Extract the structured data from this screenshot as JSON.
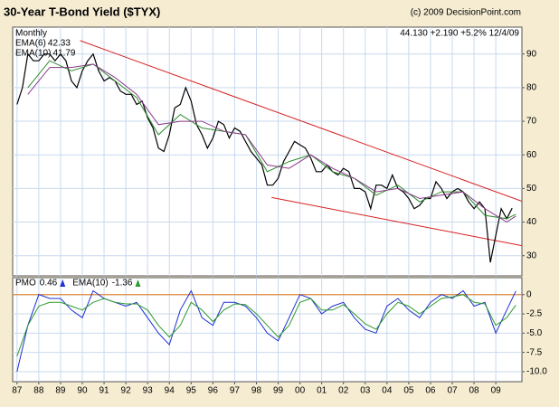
{
  "chart_data": [
    {
      "type": "line",
      "title": "30-Year T-Bond Yield ($TYX)",
      "source": "(c) 2009 DecisionPoint.com",
      "period": "Monthly",
      "quote": "44.130 +2.190 +5.2% 12/4/09",
      "xlim": [
        1986.8,
        2010.2
      ],
      "ylim": [
        24,
        98
      ],
      "yticks": [
        30,
        40,
        50,
        60,
        70,
        80,
        90
      ],
      "grid": true,
      "series": [
        {
          "color": "#000000",
          "x": [
            1987,
            1987.25,
            1987.5,
            1987.75,
            1988,
            1988.25,
            1988.5,
            1988.75,
            1989,
            1989.25,
            1989.5,
            1989.75,
            1990,
            1990.25,
            1990.5,
            1990.75,
            1991,
            1991.25,
            1991.5,
            1991.75,
            1992,
            1992.25,
            1992.5,
            1992.75,
            1993,
            1993.25,
            1993.5,
            1993.75,
            1994,
            1994.25,
            1994.5,
            1994.75,
            1995,
            1995.25,
            1995.5,
            1995.75,
            1996,
            1996.25,
            1996.5,
            1996.75,
            1997,
            1997.25,
            1997.5,
            1997.75,
            1998,
            1998.25,
            1998.5,
            1998.75,
            1999,
            1999.25,
            1999.5,
            1999.75,
            2000,
            2000.25,
            2000.5,
            2000.75,
            2001,
            2001.25,
            2001.5,
            2001.75,
            2002,
            2002.25,
            2002.5,
            2002.75,
            2003,
            2003.25,
            2003.5,
            2003.75,
            2004,
            2004.25,
            2004.5,
            2004.75,
            2005,
            2005.25,
            2005.5,
            2005.75,
            2006,
            2006.25,
            2006.5,
            2006.75,
            2007,
            2007.25,
            2007.5,
            2007.75,
            2008,
            2008.25,
            2008.5,
            2008.75,
            2009,
            2009.25,
            2009.5,
            2009.75
          ],
          "values": [
            75,
            80,
            90,
            88,
            88,
            90,
            90,
            88,
            90,
            88,
            82,
            80,
            85,
            88,
            90,
            85,
            82,
            83,
            82,
            79,
            78,
            78,
            75,
            76,
            71,
            68,
            62,
            61,
            66,
            74,
            75,
            80,
            76,
            69,
            66,
            62,
            65,
            70,
            69,
            65,
            68,
            67,
            64,
            61,
            59,
            57,
            51,
            51,
            53,
            58,
            61,
            64,
            63,
            62,
            59,
            55,
            55,
            57,
            55,
            54,
            56,
            55,
            50,
            50,
            49,
            44,
            51,
            51,
            50,
            54,
            50,
            49,
            47,
            44,
            45,
            47,
            47,
            52,
            50,
            47,
            49,
            50,
            49,
            46,
            44,
            46,
            44,
            28,
            36,
            44,
            41,
            44.13
          ]
        },
        {
          "name": "EMA(6)",
          "legend_value": 42.33,
          "color": "#2e8b2e",
          "x": [
            1987.5,
            1988.5,
            1989.5,
            1990.5,
            1991.5,
            1992.5,
            1993.5,
            1994.5,
            1995.5,
            1996.5,
            1997.5,
            1998.5,
            1999.5,
            2000.5,
            2001.5,
            2002.5,
            2003.5,
            2004.5,
            2005.5,
            2006.5,
            2007.5,
            2008.5,
            2009.5,
            2009.92
          ],
          "values": [
            80,
            88,
            85,
            87,
            82,
            77,
            66,
            72,
            68,
            67,
            66,
            55,
            58,
            60,
            55,
            53,
            48,
            51,
            46,
            49,
            49,
            42,
            41,
            42.33
          ]
        },
        {
          "name": "EMA(10)",
          "legend_value": 41.79,
          "color": "#8b3a8b",
          "x": [
            1987.5,
            1988.5,
            1989.5,
            1990.5,
            1991.5,
            1992.5,
            1993.5,
            1994.5,
            1995.5,
            1996.5,
            1997.5,
            1998.5,
            1999.5,
            2000.5,
            2001.5,
            2002.5,
            2003.5,
            2004.5,
            2005.5,
            2006.5,
            2007.5,
            2008.5,
            2009.5,
            2009.92
          ],
          "values": [
            78,
            86,
            86,
            87,
            83,
            78,
            69,
            70,
            70,
            67,
            66,
            57,
            56,
            60,
            56,
            53,
            49,
            50,
            47,
            48,
            49,
            44,
            40,
            41.79
          ]
        }
      ],
      "trend_lines": [
        {
          "color": "#d82020",
          "x": [
            1989.9,
            2010.2
          ],
          "values": [
            94,
            46.2
          ]
        },
        {
          "color": "#d82020",
          "x": [
            1998.7,
            2010.2
          ],
          "values": [
            47.3,
            33
          ]
        }
      ]
    },
    {
      "type": "line",
      "xlim": [
        1986.8,
        2010.2
      ],
      "ylim": [
        -11.3,
        2.2
      ],
      "yticks": [
        0,
        -2.5,
        {
          "value": -5,
          "label": "-5.0"
        },
        {
          "value": -7.5,
          "label": "-7.5"
        },
        {
          "value": -10,
          "label": "-10.0"
        }
      ],
      "grid": true,
      "xticks": [
        {
          "value": 1987,
          "label": "87"
        },
        {
          "value": 1988,
          "label": "88"
        },
        {
          "value": 1989,
          "label": "89"
        },
        {
          "value": 1990,
          "label": "90"
        },
        {
          "value": 1991,
          "label": "91"
        },
        {
          "value": 1992,
          "label": "92"
        },
        {
          "value": 1993,
          "label": "93"
        },
        {
          "value": 1994,
          "label": "94"
        },
        {
          "value": 1995,
          "label": "95"
        },
        {
          "value": 1996,
          "label": "96"
        },
        {
          "value": 1997,
          "label": "97"
        },
        {
          "value": 1998,
          "label": "98"
        },
        {
          "value": 1999,
          "label": "99"
        },
        {
          "value": 2000,
          "label": "00"
        },
        {
          "value": 2001,
          "label": "01"
        },
        {
          "value": 2002,
          "label": "02"
        },
        {
          "value": 2003,
          "label": "03"
        },
        {
          "value": 2004,
          "label": "04"
        },
        {
          "value": 2005,
          "label": "05"
        },
        {
          "value": 2006,
          "label": "06"
        },
        {
          "value": 2007,
          "label": "07"
        },
        {
          "value": 2008,
          "label": "08"
        },
        {
          "value": 2009,
          "label": "09"
        }
      ],
      "hline": {
        "value": 0,
        "color": "#e08a3a"
      },
      "series": [
        {
          "name": "PMO",
          "legend_value": 0.46,
          "color": "#1c2fd0",
          "x": [
            1987,
            1987.5,
            1988,
            1988.5,
            1989,
            1989.5,
            1990,
            1990.5,
            1991,
            1991.5,
            1992,
            1992.5,
            1993,
            1993.5,
            1994,
            1994.5,
            1995,
            1995.5,
            1996,
            1996.5,
            1997,
            1997.5,
            1998,
            1998.5,
            1999,
            1999.5,
            2000,
            2000.5,
            2001,
            2001.5,
            2002,
            2002.5,
            2003,
            2003.5,
            2004,
            2004.5,
            2005,
            2005.5,
            2006,
            2006.5,
            2007,
            2007.5,
            2008,
            2008.5,
            2009,
            2009.5,
            2009.92
          ],
          "values": [
            -10,
            -4,
            0,
            -0.5,
            -0.5,
            -2,
            -3,
            0.5,
            -0.5,
            -1,
            -1.5,
            -1,
            -3,
            -5,
            -6.5,
            -2,
            0.5,
            -3,
            -4,
            -1,
            -1,
            -1.5,
            -3,
            -5,
            -6,
            -3,
            0,
            -0.5,
            -2.5,
            -1.5,
            -1,
            -3,
            -4.5,
            -5,
            -1.5,
            -0.5,
            -2,
            -3,
            -1,
            0,
            -0.5,
            0.5,
            -1.5,
            -1,
            -5,
            -2,
            0.46
          ]
        },
        {
          "name": "EMA(10)",
          "legend_value": -1.36,
          "color": "#2e9b2e",
          "x": [
            1987,
            1987.5,
            1988,
            1988.5,
            1989,
            1989.5,
            1990,
            1990.5,
            1991,
            1991.5,
            1992,
            1992.5,
            1993,
            1993.5,
            1994,
            1994.5,
            1995,
            1995.5,
            1996,
            1996.5,
            1997,
            1997.5,
            1998,
            1998.5,
            1999,
            1999.5,
            2000,
            2000.5,
            2001,
            2001.5,
            2002,
            2002.5,
            2003,
            2003.5,
            2004,
            2004.5,
            2005,
            2005.5,
            2006,
            2006.5,
            2007,
            2007.5,
            2008,
            2008.5,
            2009,
            2009.5,
            2009.92
          ],
          "values": [
            -8,
            -4,
            -1.5,
            -1,
            -1,
            -1.5,
            -2,
            -1,
            -0.5,
            -1,
            -1.2,
            -1.2,
            -2,
            -4,
            -5.5,
            -4,
            -1,
            -2,
            -3.5,
            -2,
            -1.2,
            -1.3,
            -2.5,
            -4,
            -5.5,
            -4,
            -1,
            -0.5,
            -2,
            -2,
            -1.3,
            -2.5,
            -3.8,
            -4.5,
            -2.5,
            -1,
            -1.5,
            -2.5,
            -1.5,
            -0.5,
            -0.3,
            0,
            -1,
            -1.2,
            -4,
            -3,
            -1.36
          ]
        }
      ]
    }
  ]
}
